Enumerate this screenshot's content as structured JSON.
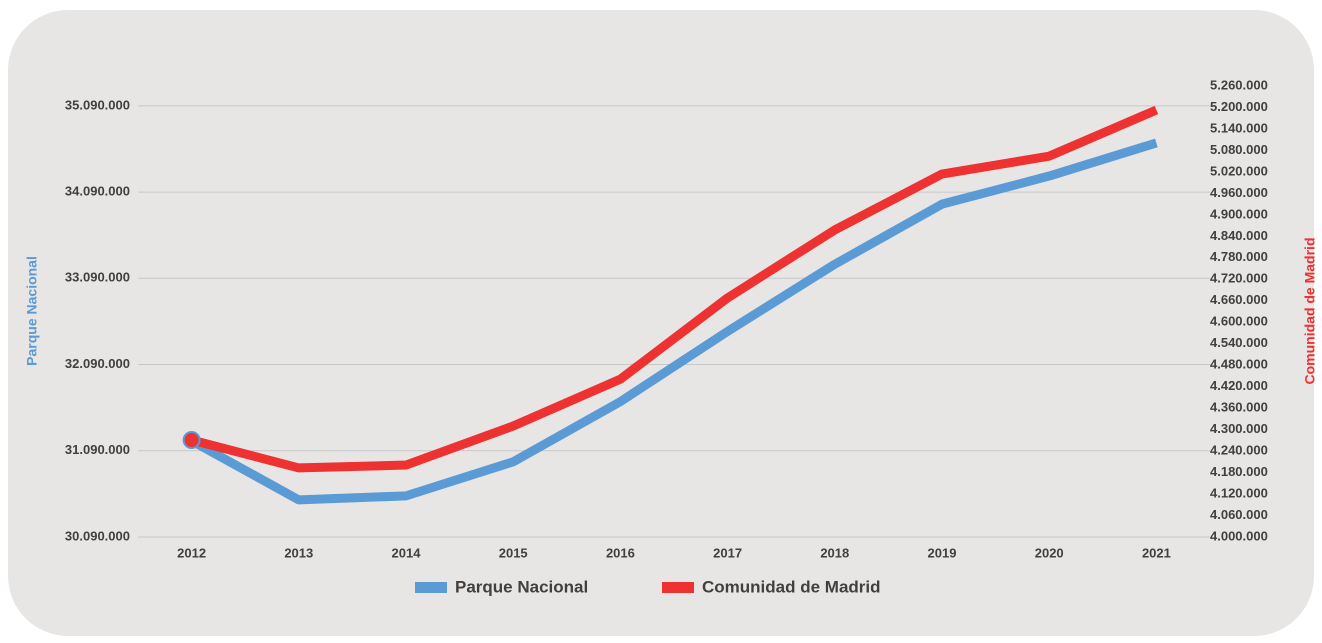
{
  "chart_data": {
    "type": "line",
    "y_label": "Parque Nacional",
    "y2_label": "Comunidad de Madrid",
    "categories": [
      "2012",
      "2013",
      "2014",
      "2015",
      "2016",
      "2017",
      "2018",
      "2019",
      "2020",
      "2021"
    ],
    "series": [
      {
        "name": "Parque Nacional",
        "color": "#5b9bd5",
        "values": [
          31206000,
          30520000,
          30567000,
          30962000,
          31660000,
          32474000,
          33253000,
          33950000,
          34276000,
          34660000
        ]
      },
      {
        "name": "Comunidad de Madrid",
        "color": "#ee3131",
        "axis": "y2",
        "values": [
          4271000,
          4193000,
          4201000,
          4310000,
          4441000,
          4668000,
          4858000,
          5014000,
          5064000,
          5193000
        ]
      }
    ],
    "ylim": [
      30090000,
      35320000
    ],
    "yticks": [
      {
        "value": 30090000,
        "label": "30.090.000"
      },
      {
        "value": 31090000,
        "label": "31.090.000"
      },
      {
        "value": 32090000,
        "label": "32.090.000"
      },
      {
        "value": 33090000,
        "label": "33.090.000"
      },
      {
        "value": 34090000,
        "label": "34.090.000"
      },
      {
        "value": 35090000,
        "label": "35.090.000"
      }
    ],
    "y2lim": [
      4000000,
      5260000
    ],
    "y2ticks": [
      {
        "value": 4000000,
        "label": "4.000.000"
      },
      {
        "value": 4060000,
        "label": "4.060.000"
      },
      {
        "value": 4120000,
        "label": "4.120.000"
      },
      {
        "value": 4180000,
        "label": "4.180.000"
      },
      {
        "value": 4240000,
        "label": "4.240.000"
      },
      {
        "value": 4300000,
        "label": "4.300.000"
      },
      {
        "value": 4360000,
        "label": "4.360.000"
      },
      {
        "value": 4420000,
        "label": "4.420.000"
      },
      {
        "value": 4480000,
        "label": "4.480.000"
      },
      {
        "value": 4540000,
        "label": "4.540.000"
      },
      {
        "value": 4600000,
        "label": "4.600.000"
      },
      {
        "value": 4660000,
        "label": "4.660.000"
      },
      {
        "value": 4720000,
        "label": "4.720.000"
      },
      {
        "value": 4780000,
        "label": "4.780.000"
      },
      {
        "value": 4840000,
        "label": "4.840.000"
      },
      {
        "value": 4900000,
        "label": "4.900.000"
      },
      {
        "value": 4960000,
        "label": "4.960.000"
      },
      {
        "value": 5020000,
        "label": "5.020.000"
      },
      {
        "value": 5080000,
        "label": "5.080.000"
      },
      {
        "value": 5140000,
        "label": "5.140.000"
      },
      {
        "value": 5200000,
        "label": "5.200.000"
      },
      {
        "value": 5260000,
        "label": "5.260.000"
      }
    ],
    "grid": true,
    "legend": "bottom"
  }
}
